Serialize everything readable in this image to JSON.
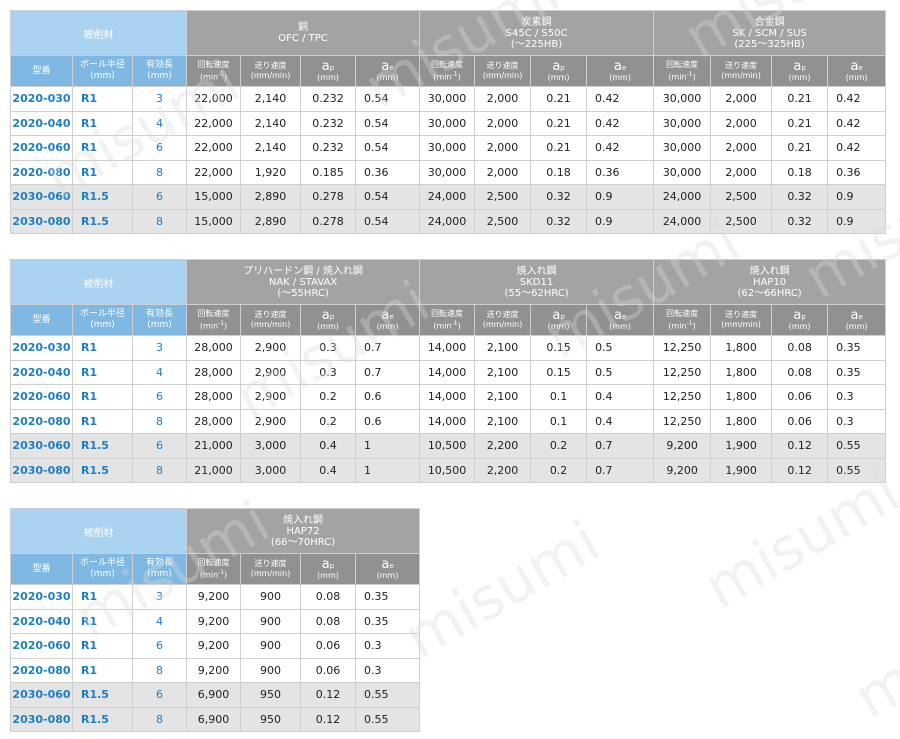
{
  "header": {
    "material_label": "被削材",
    "col_model": "型番",
    "col_radius": [
      "ボール半径",
      "(mm)"
    ],
    "col_length": [
      "有効長",
      "(mm)"
    ]
  },
  "sub_headers": {
    "speed": [
      "回転速度",
      "(min",
      "-1",
      ")"
    ],
    "feed": [
      "送り速度",
      "(mm/min)"
    ],
    "ap": [
      "a",
      "p",
      "(mm)"
    ],
    "ae": [
      "a",
      "e",
      "(mm)"
    ]
  },
  "watermark": "misumi",
  "models": [
    {
      "model": "2020-030",
      "radius": "R1",
      "length": "3",
      "shade": "w"
    },
    {
      "model": "2020-040",
      "radius": "R1",
      "length": "4",
      "shade": "w"
    },
    {
      "model": "2020-060",
      "radius": "R1",
      "length": "6",
      "shade": "w"
    },
    {
      "model": "2020-080",
      "radius": "R1",
      "length": "8",
      "shade": "w"
    },
    {
      "model": "2030-060",
      "radius": "R1.5",
      "length": "6",
      "shade": "g"
    },
    {
      "model": "2030-080",
      "radius": "R1.5",
      "length": "8",
      "shade": "g"
    }
  ],
  "tables": [
    {
      "materials": [
        {
          "lines": [
            "銅",
            "OFC / TPC"
          ]
        },
        {
          "lines": [
            "炭素鋼",
            "S45C / S50C",
            "(～225HB)"
          ]
        },
        {
          "lines": [
            "合金鋼",
            "SK / SCM / SUS",
            "(225～325HB)"
          ]
        }
      ],
      "rows": [
        [
          "22,000",
          "2,140",
          "0.232",
          "0.54",
          "30,000",
          "2,000",
          "0.21",
          "0.42",
          "30,000",
          "2,000",
          "0.21",
          "0.42"
        ],
        [
          "22,000",
          "2,140",
          "0.232",
          "0.54",
          "30,000",
          "2,000",
          "0.21",
          "0.42",
          "30,000",
          "2,000",
          "0.21",
          "0.42"
        ],
        [
          "22,000",
          "2,140",
          "0.232",
          "0.54",
          "30,000",
          "2,000",
          "0.21",
          "0.42",
          "30,000",
          "2,000",
          "0.21",
          "0.42"
        ],
        [
          "22,000",
          "1,920",
          "0.185",
          "0.36",
          "30,000",
          "2,000",
          "0.18",
          "0.36",
          "30,000",
          "2,000",
          "0.18",
          "0.36"
        ],
        [
          "15,000",
          "2,890",
          "0.278",
          "0.54",
          "24,000",
          "2,500",
          "0.32",
          "0.9",
          "24,000",
          "2,500",
          "0.32",
          "0.9"
        ],
        [
          "15,000",
          "2,890",
          "0.278",
          "0.54",
          "24,000",
          "2,500",
          "0.32",
          "0.9",
          "24,000",
          "2,500",
          "0.32",
          "0.9"
        ]
      ]
    },
    {
      "materials": [
        {
          "lines": [
            "プリハードン鋼 / 焼入れ鋼",
            "NAK / STAVAX",
            "(～55HRC)"
          ]
        },
        {
          "lines": [
            "焼入れ鋼",
            "SKD11",
            "(55～62HRC)"
          ]
        },
        {
          "lines": [
            "焼入れ鋼",
            "HAP10",
            "(62～66HRC)"
          ]
        }
      ],
      "rows": [
        [
          "28,000",
          "2,900",
          "0.3",
          "0.7",
          "14,000",
          "2,100",
          "0.15",
          "0.5",
          "12,250",
          "1,800",
          "0.08",
          "0.35"
        ],
        [
          "28,000",
          "2,900",
          "0.3",
          "0.7",
          "14,000",
          "2,100",
          "0.15",
          "0.5",
          "12,250",
          "1,800",
          "0.08",
          "0.35"
        ],
        [
          "28,000",
          "2,900",
          "0.2",
          "0.6",
          "14,000",
          "2,100",
          "0.1",
          "0.4",
          "12,250",
          "1,800",
          "0.06",
          "0.3"
        ],
        [
          "28,000",
          "2,900",
          "0.2",
          "0.6",
          "14,000",
          "2,100",
          "0.1",
          "0.4",
          "12,250",
          "1,800",
          "0.06",
          "0.3"
        ],
        [
          "21,000",
          "3,000",
          "0.4",
          "1",
          "10,500",
          "2,200",
          "0.2",
          "0.7",
          "9,200",
          "1,900",
          "0.12",
          "0.55"
        ],
        [
          "21,000",
          "3,000",
          "0.4",
          "1",
          "10,500",
          "2,200",
          "0.2",
          "0.7",
          "9,200",
          "1,900",
          "0.12",
          "0.55"
        ]
      ]
    },
    {
      "materials": [
        {
          "lines": [
            "焼入れ鋼",
            "HAP72",
            "(66～70HRC)"
          ]
        }
      ],
      "rows": [
        [
          "9,200",
          "900",
          "0.08",
          "0.35"
        ],
        [
          "9,200",
          "900",
          "0.08",
          "0.35"
        ],
        [
          "9,200",
          "900",
          "0.06",
          "0.3"
        ],
        [
          "9,200",
          "900",
          "0.06",
          "0.3"
        ],
        [
          "6,900",
          "950",
          "0.12",
          "0.55"
        ],
        [
          "6,900",
          "950",
          "0.12",
          "0.55"
        ]
      ]
    }
  ]
}
